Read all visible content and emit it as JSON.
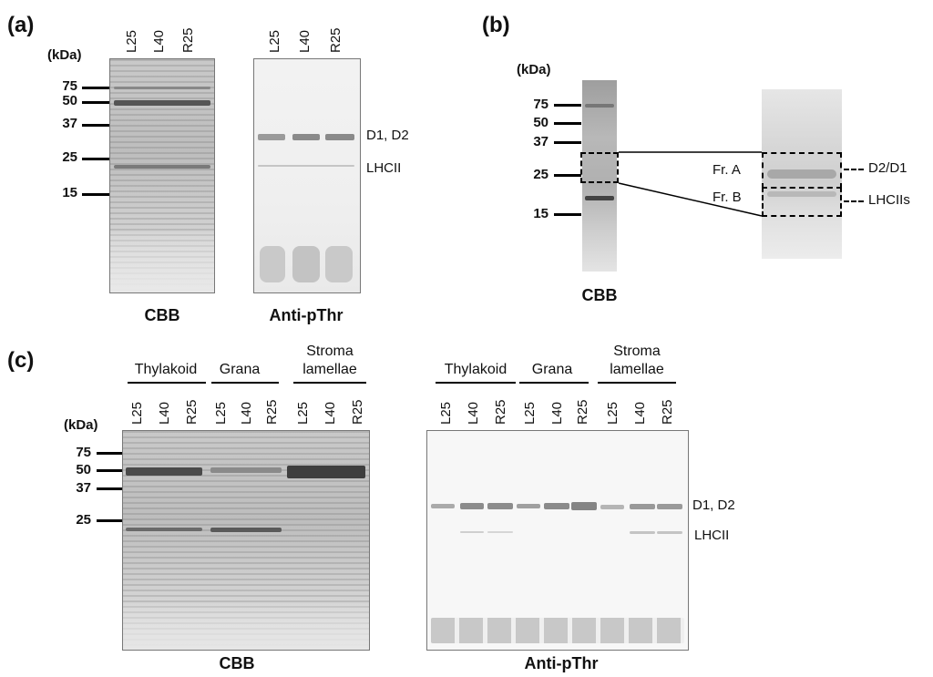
{
  "panel_a": {
    "label": "(a)",
    "kda": "(kDa)",
    "markers": [
      "75",
      "50",
      "37",
      "25",
      "15"
    ],
    "lanes": [
      "L25",
      "L40",
      "R25"
    ],
    "caption_left": "CBB",
    "caption_right": "Anti-pThr",
    "band_labels": [
      "D1, D2",
      "LHCII"
    ]
  },
  "panel_b": {
    "label": "(b)",
    "kda": "(kDa)",
    "markers": [
      "75",
      "50",
      "37",
      "25",
      "15"
    ],
    "caption": "CBB",
    "fractions": [
      "Fr. A",
      "Fr. B"
    ],
    "band_labels": [
      "D2/D1",
      "LHCIIs"
    ]
  },
  "panel_c": {
    "label": "(c)",
    "kda": "(kDa)",
    "markers": [
      "75",
      "50",
      "37",
      "25"
    ],
    "groups": [
      "Thylakoid",
      "Grana",
      "Stroma",
      "lamellae"
    ],
    "lanes": [
      "L25",
      "L40",
      "R25",
      "L25",
      "L40",
      "R25",
      "L25",
      "L40",
      "R25"
    ],
    "caption_left": "CBB",
    "caption_right": "Anti-pThr",
    "band_labels": [
      "D1, D2",
      "LHCII"
    ]
  }
}
